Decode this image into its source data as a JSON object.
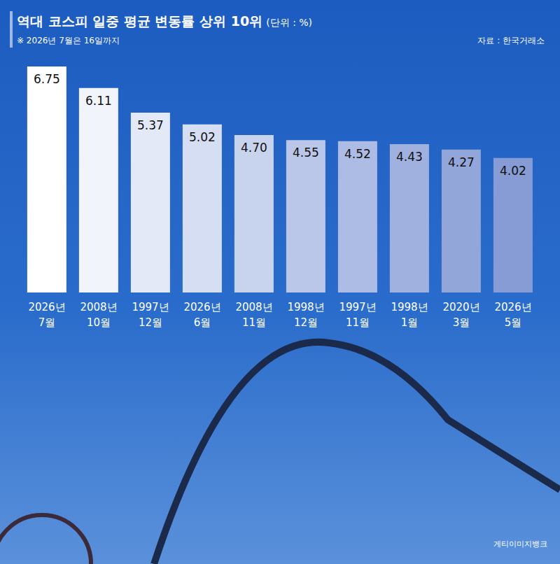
{
  "chart_data": {
    "type": "bar",
    "title": "역대 코스피 일중 평균 변동률 상위 10위",
    "subtitle": "(단위 : %)",
    "note": "※ 2026년 7월은 16일까지",
    "source": "자료 : 한국거래소",
    "image_credit": "게티이미지뱅크",
    "categories": [
      "2026년 7월",
      "2008년 10월",
      "1997년 12월",
      "2026년 6월",
      "2008년 11월",
      "1998년 12월",
      "1997년 11월",
      "1998년 1월",
      "2020년 3월",
      "2026년 5월"
    ],
    "values": [
      6.75,
      6.11,
      5.37,
      5.02,
      4.7,
      4.55,
      4.52,
      4.43,
      4.27,
      4.02
    ],
    "value_labels": [
      "6.75",
      "6.11",
      "5.37",
      "5.02",
      "4.70",
      "4.55",
      "4.52",
      "4.43",
      "4.27",
      "4.02"
    ],
    "colors": [
      "#ffffff",
      "#f1f4fb",
      "#e4e9f7",
      "#d6def3",
      "#c8d3ee",
      "#bac7e9",
      "#adbce4",
      "#a0b1df",
      "#93a6da",
      "#879cd5"
    ],
    "ylim": [
      0,
      6.75
    ],
    "data_labels": true,
    "tick_labels": "x",
    "grid": false
  }
}
